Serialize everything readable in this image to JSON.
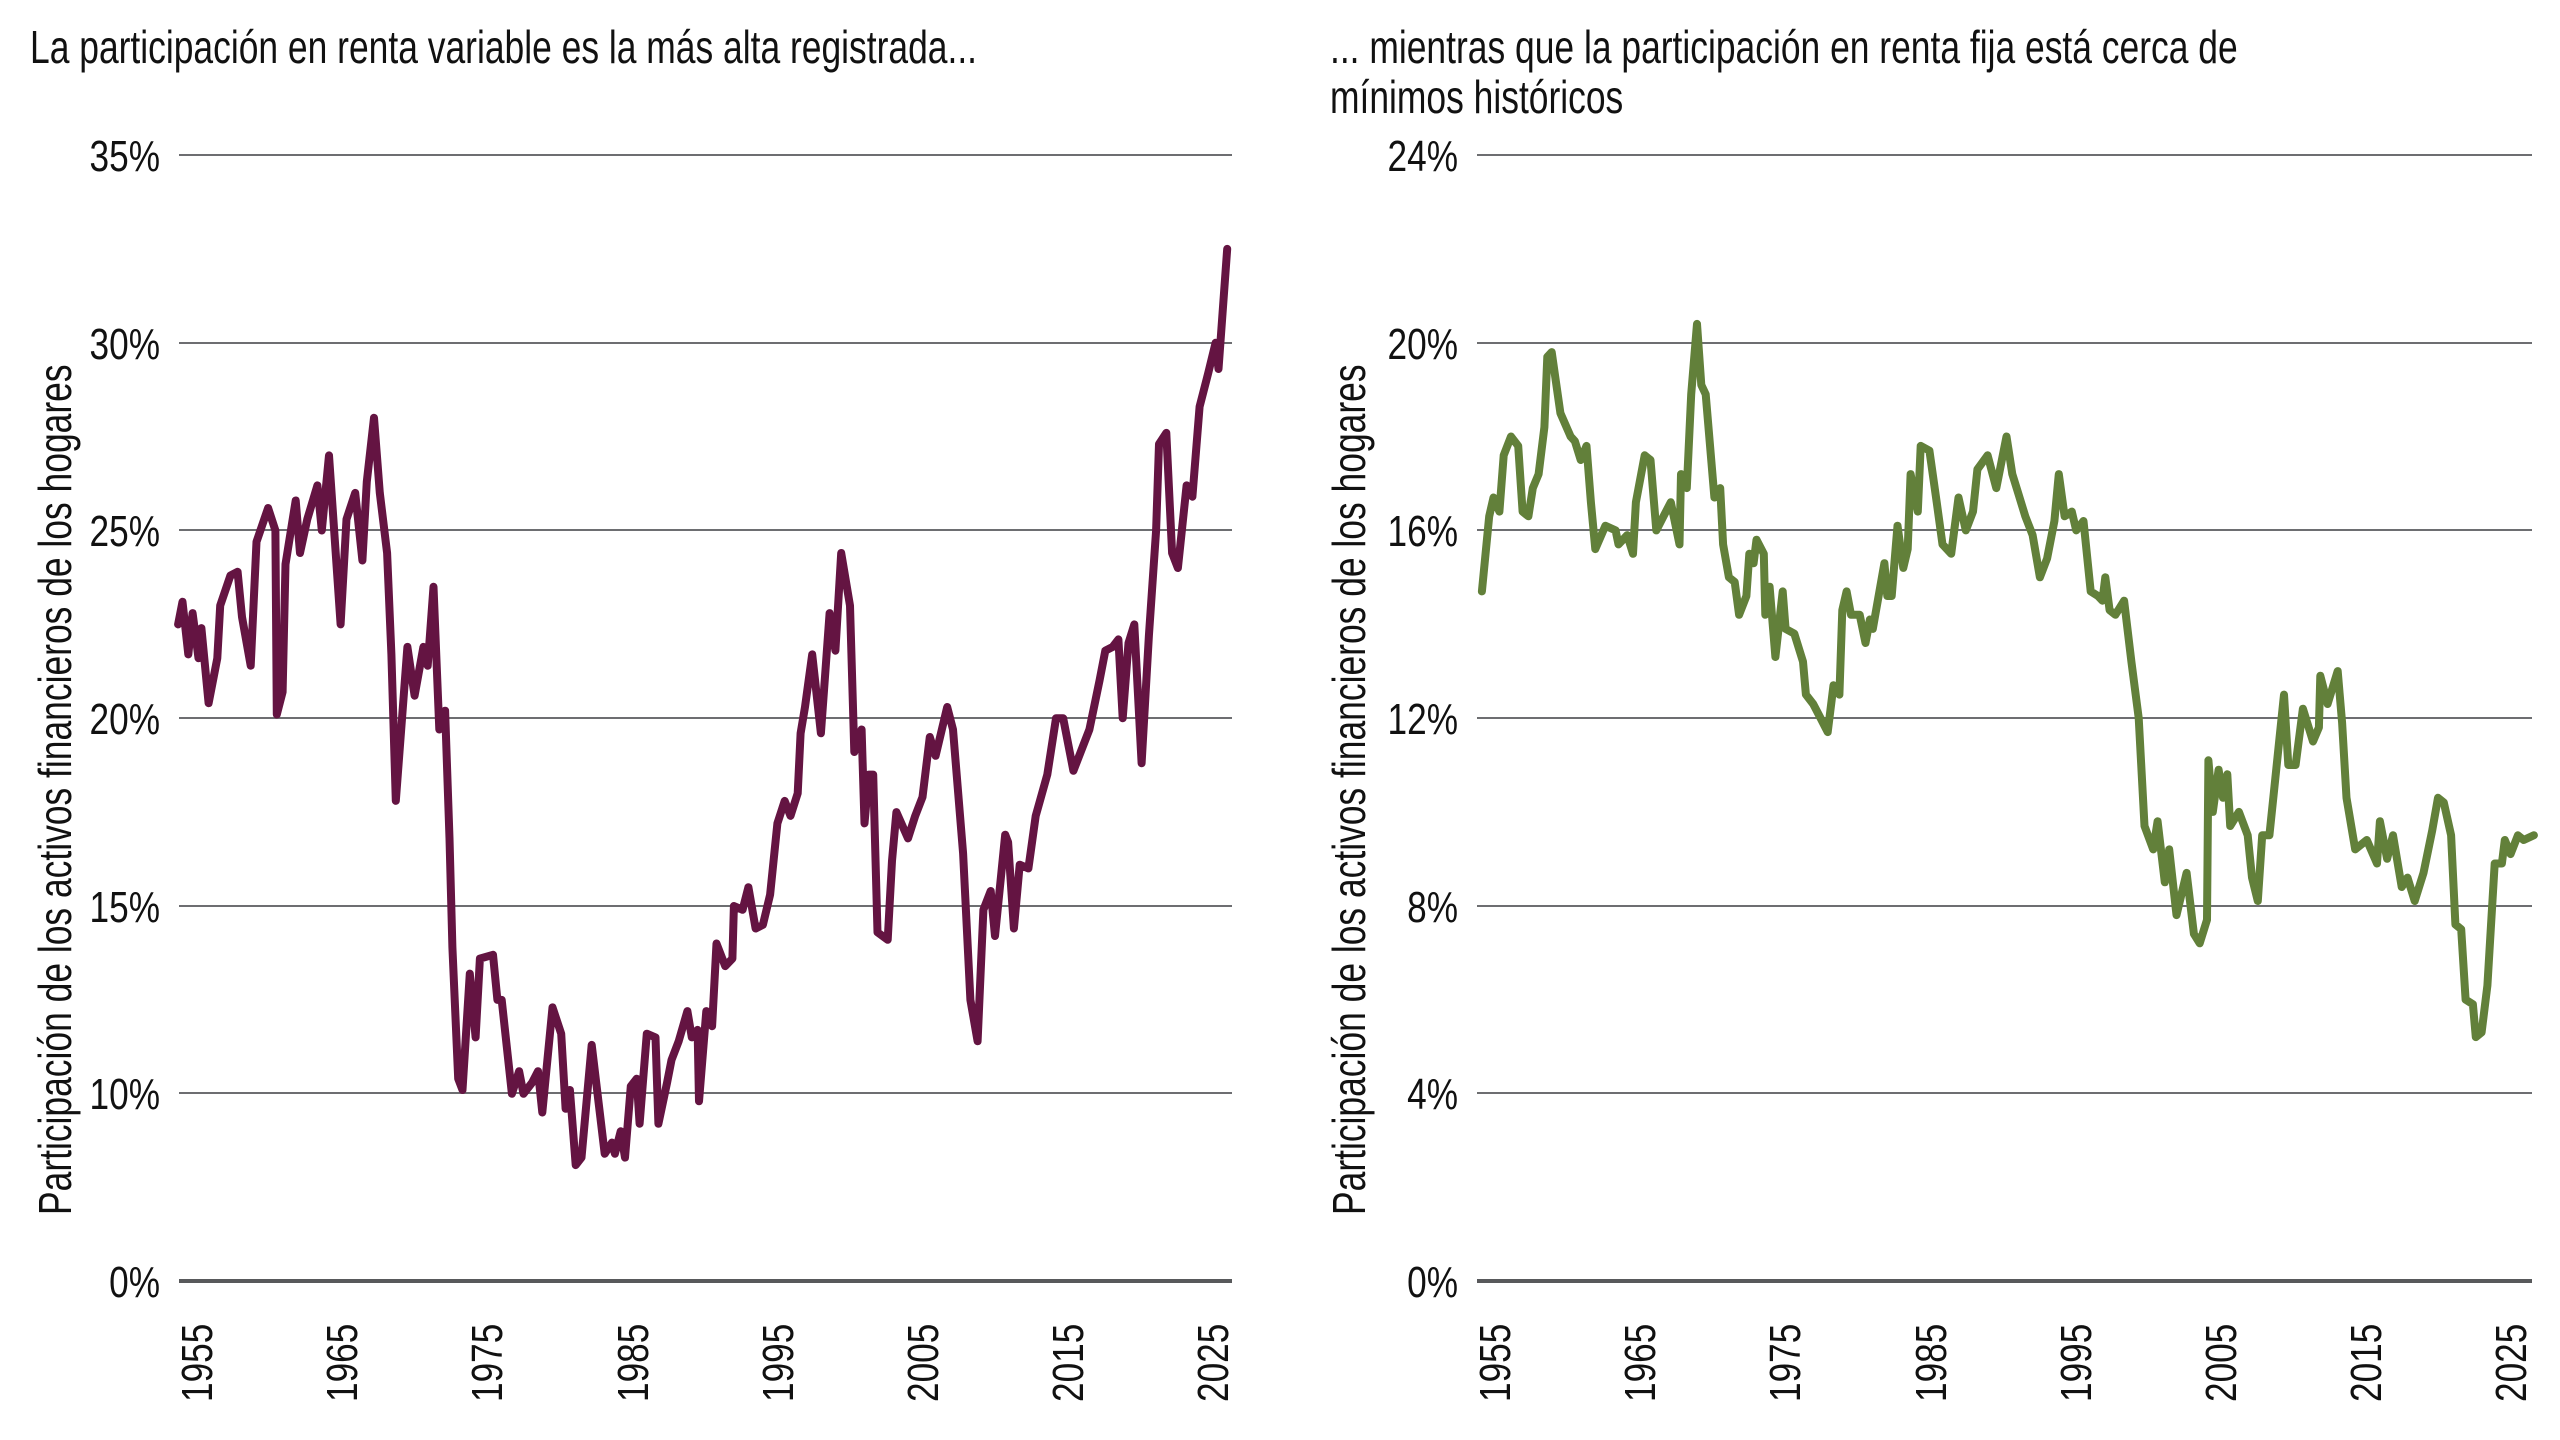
{
  "chart_data": [
    {
      "type": "line",
      "title": "La participación en renta variable es la más alta registrada...",
      "xlabel": "",
      "ylabel": "Participación de los activos financieros de los hogares",
      "y_ticks": [
        "35%",
        "30%",
        "25%",
        "20%",
        "15%",
        "10%",
        "0%"
      ],
      "y_tick_values": [
        35,
        30,
        25,
        20,
        15,
        10,
        5
      ],
      "y_axis_note": "Axis break: the '0%' label sits one step below 10% (at the 5% position)",
      "x_ticks": [
        "1955",
        "1965",
        "1975",
        "1985",
        "1995",
        "2005",
        "2015",
        "2025"
      ],
      "ylim": [
        5,
        35
      ],
      "xlim": [
        1953.8,
        2026.3
      ],
      "grid": true,
      "legend": null,
      "color": "#641442",
      "series": [
        {
          "name": "Renta variable",
          "x": [
            1953.7,
            1954.0,
            1954.4,
            1954.7,
            1955.1,
            1955.3,
            1955.8,
            1956.4,
            1956.6,
            1957.3,
            1957.8,
            1958.1,
            1958.7,
            1959.1,
            1959.9,
            1960.4,
            1960.5,
            1960.9,
            1961.1,
            1961.8,
            1962.1,
            1962.6,
            1963.3,
            1963.6,
            1964.1,
            1964.9,
            1965.3,
            1965.9,
            1966.4,
            1966.7,
            1967.2,
            1967.6,
            1968.1,
            1968.4,
            1968.7,
            1969.5,
            1970.0,
            1970.6,
            1970.9,
            1971.3,
            1971.7,
            1972.1,
            1972.4,
            1972.6,
            1973.0,
            1973.3,
            1973.8,
            1974.2,
            1974.5,
            1975.4,
            1975.7,
            1976.0,
            1976.7,
            1977.2,
            1977.5,
            1978.1,
            1978.5,
            1978.8,
            1979.5,
            1980.1,
            1980.4,
            1980.7,
            1981.1,
            1981.5,
            1982.2,
            1983.1,
            1983.6,
            1983.8,
            1984.2,
            1984.5,
            1984.9,
            1985.3,
            1985.5,
            1986.0,
            1986.6,
            1986.8,
            1987.4,
            1987.7,
            1988.2,
            1988.8,
            1989.1,
            1989.5,
            1989.6,
            1990.1,
            1990.5,
            1990.8,
            1991.4,
            1991.9,
            1992.0,
            1992.6,
            1993.0,
            1993.5,
            1994.0,
            1994.5,
            1995.0,
            1995.5,
            1995.9,
            1996.4,
            1996.6,
            1996.9,
            1997.4,
            1998.0,
            1998.6,
            1999.0,
            1999.4,
            2000.0,
            2000.3,
            2000.8,
            2001.0,
            2001.3,
            2001.6,
            2001.9,
            2002.6,
            2002.9,
            2003.2,
            2004.0,
            2004.5,
            2005.0,
            2005.5,
            2005.9,
            2006.7,
            2007.1,
            2007.8,
            2008.3,
            2008.8,
            2009.2,
            2009.7,
            2010.0,
            2010.7,
            2010.9,
            2011.3,
            2011.7,
            2012.3,
            2012.8,
            2013.6,
            2014.2,
            2014.7,
            2015.4,
            2016.5,
            2017.2,
            2017.6,
            2018.1,
            2018.5,
            2018.8,
            2019.2,
            2019.6,
            2020.1,
            2020.6,
            2021.1,
            2021.3,
            2021.8,
            2022.2,
            2022.6,
            2023.2,
            2023.6,
            2024.1,
            2024.7,
            2025.2,
            2025.4,
            2026.0
          ],
          "values": [
            22.5,
            23.1,
            21.7,
            22.8,
            21.6,
            22.4,
            20.4,
            21.6,
            23.0,
            23.8,
            23.9,
            22.7,
            21.4,
            24.7,
            25.6,
            25.0,
            20.1,
            20.7,
            24.1,
            25.8,
            24.4,
            25.3,
            26.2,
            25.0,
            27.0,
            22.5,
            25.3,
            26.0,
            24.2,
            26.3,
            28.0,
            26.0,
            24.4,
            21.7,
            17.8,
            21.9,
            20.6,
            21.9,
            21.4,
            23.5,
            19.7,
            20.2,
            16.8,
            13.9,
            10.4,
            10.1,
            13.2,
            11.5,
            13.6,
            13.7,
            12.5,
            12.5,
            10.0,
            10.6,
            10.0,
            10.3,
            10.6,
            9.5,
            12.3,
            11.6,
            9.6,
            10.1,
            8.1,
            8.3,
            11.3,
            8.4,
            8.7,
            8.4,
            9.0,
            8.3,
            10.2,
            10.4,
            9.2,
            11.6,
            11.5,
            9.2,
            10.3,
            10.9,
            11.4,
            12.2,
            11.5,
            11.7,
            9.8,
            12.2,
            11.8,
            14.0,
            13.4,
            13.6,
            15.0,
            14.9,
            15.5,
            14.4,
            14.5,
            15.3,
            17.2,
            17.8,
            17.4,
            18.0,
            19.6,
            20.3,
            21.7,
            19.6,
            22.8,
            21.8,
            24.4,
            23.0,
            19.1,
            19.7,
            17.2,
            18.5,
            18.5,
            14.3,
            14.1,
            16.2,
            17.5,
            16.8,
            17.4,
            17.9,
            19.5,
            19.0,
            20.3,
            19.7,
            16.4,
            12.5,
            11.4,
            14.9,
            15.4,
            14.2,
            16.9,
            16.7,
            14.4,
            16.1,
            16.0,
            17.4,
            18.5,
            20.0,
            20.0,
            18.6,
            19.7,
            21.0,
            21.8,
            21.9,
            22.1,
            20.0,
            22.0,
            22.5,
            18.8,
            22.2,
            25.0,
            27.3,
            27.6,
            24.4,
            24.0,
            26.2,
            25.9,
            28.3,
            29.2,
            30.0,
            29.3,
            32.5
          ]
        }
      ]
    },
    {
      "type": "line",
      "title": "... mientras que la participación en renta fija está cerca de mínimos históricos",
      "xlabel": "",
      "ylabel": "Participación de los activos financieros de los hogares",
      "y_ticks": [
        "24%",
        "20%",
        "16%",
        "12%",
        "8%",
        "4%",
        "0%"
      ],
      "y_tick_values": [
        24,
        20,
        16,
        12,
        8,
        4,
        0
      ],
      "x_ticks": [
        "1955",
        "1965",
        "1975",
        "1985",
        "1995",
        "2005",
        "2015",
        "2025"
      ],
      "ylim": [
        0,
        24
      ],
      "xlim": [
        1953.8,
        2026.5
      ],
      "grid": true,
      "legend": null,
      "color": "#62803a",
      "series": [
        {
          "name": "Renta fija",
          "x": [
            1954.1,
            1954.6,
            1954.9,
            1955.3,
            1955.6,
            1956.1,
            1956.6,
            1956.9,
            1957.3,
            1957.6,
            1958.0,
            1958.4,
            1958.6,
            1958.9,
            1959.5,
            1960.2,
            1960.5,
            1960.9,
            1961.3,
            1961.6,
            1961.9,
            1962.6,
            1963.3,
            1963.5,
            1964.1,
            1964.5,
            1964.7,
            1965.3,
            1965.7,
            1966.1,
            1966.6,
            1967.1,
            1967.7,
            1967.8,
            1968.2,
            1968.5,
            1968.9,
            1969.2,
            1969.5,
            1970.1,
            1970.5,
            1970.7,
            1971.1,
            1971.5,
            1971.8,
            1972.3,
            1972.5,
            1972.8,
            1973.0,
            1973.5,
            1973.6,
            1973.9,
            1974.3,
            1974.8,
            1975.0,
            1975.6,
            1976.2,
            1976.4,
            1976.9,
            1977.4,
            1977.9,
            1978.3,
            1978.7,
            1978.9,
            1979.2,
            1979.5,
            1980.1,
            1980.5,
            1980.8,
            1981.0,
            1981.8,
            1982.0,
            1982.3,
            1982.7,
            1983.1,
            1983.4,
            1983.6,
            1984.1,
            1984.3,
            1984.9,
            1985.4,
            1985.8,
            1986.4,
            1986.9,
            1987.4,
            1987.9,
            1988.2,
            1988.9,
            1989.5,
            1990.2,
            1990.6,
            1991.0,
            1991.5,
            1992.0,
            1992.5,
            1993.0,
            1993.5,
            1993.8,
            1994.2,
            1994.7,
            1995.0,
            1995.5,
            1996.0,
            1996.5,
            1996.8,
            1997.0,
            1997.3,
            1997.7,
            1998.3,
            1998.8,
            1999.3,
            1999.7,
            2000.3,
            2000.6,
            2001.1,
            2001.4,
            2001.9,
            2002.6,
            2003.1,
            2003.5,
            2004.0,
            2004.1,
            2004.4,
            2004.8,
            2005.1,
            2005.4,
            2005.6,
            2006.2,
            2006.8,
            2007.1,
            2007.5,
            2007.8,
            2008.3,
            2008.6,
            2009.3,
            2009.6,
            2010.1,
            2010.6,
            2011.3,
            2011.7,
            2011.8,
            2012.3,
            2013.0,
            2013.3,
            2013.6,
            2014.2,
            2015.0,
            2015.7,
            2015.9,
            2016.4,
            2016.8,
            2017.4,
            2017.8,
            2018.3,
            2018.9,
            2019.5,
            2019.9,
            2020.3,
            2020.8,
            2021.1,
            2021.5,
            2021.8,
            2022.3,
            2022.5,
            2022.9,
            2023.3,
            2023.8,
            2024.3,
            2024.5,
            2024.9,
            2025.4,
            2025.8,
            2026.5
          ],
          "values": [
            14.7,
            16.3,
            16.7,
            16.4,
            17.6,
            18.0,
            17.8,
            16.4,
            16.3,
            16.9,
            17.2,
            18.2,
            19.7,
            19.8,
            18.5,
            18.0,
            17.9,
            17.5,
            17.8,
            16.6,
            15.6,
            16.1,
            16.0,
            15.7,
            15.9,
            15.5,
            16.6,
            17.6,
            17.5,
            16.0,
            16.3,
            16.6,
            15.7,
            17.2,
            16.9,
            18.9,
            20.4,
            19.1,
            18.9,
            16.7,
            16.9,
            15.7,
            15.0,
            14.9,
            14.2,
            14.6,
            15.5,
            15.3,
            15.8,
            15.5,
            14.2,
            14.8,
            13.3,
            14.7,
            13.9,
            13.8,
            13.2,
            12.5,
            12.3,
            12.0,
            11.7,
            12.7,
            12.5,
            14.3,
            14.7,
            14.2,
            14.2,
            13.6,
            14.1,
            13.9,
            15.3,
            14.6,
            14.6,
            16.1,
            15.2,
            15.6,
            17.2,
            16.4,
            17.8,
            17.7,
            16.6,
            15.7,
            15.5,
            16.7,
            16.0,
            16.4,
            17.3,
            17.6,
            16.9,
            18.0,
            17.2,
            16.8,
            16.3,
            15.9,
            15.0,
            15.4,
            16.2,
            17.2,
            16.3,
            16.4,
            16.0,
            16.2,
            14.7,
            14.6,
            14.5,
            15.0,
            14.3,
            14.2,
            14.5,
            13.2,
            12.0,
            9.7,
            9.2,
            9.8,
            8.5,
            9.2,
            7.8,
            8.7,
            7.4,
            7.2,
            7.7,
            11.1,
            10.0,
            10.9,
            10.3,
            10.8,
            9.7,
            10.0,
            9.5,
            8.6,
            8.1,
            9.5,
            9.5,
            10.4,
            12.5,
            11.0,
            11.0,
            12.2,
            11.5,
            11.8,
            12.9,
            12.3,
            13.0,
            11.9,
            10.3,
            9.2,
            9.4,
            8.9,
            9.8,
            9.0,
            9.5,
            8.4,
            8.6,
            8.1,
            8.7,
            9.6,
            10.3,
            10.2,
            9.5,
            7.6,
            7.5,
            6.0,
            5.9,
            5.2,
            5.3,
            6.3,
            8.9,
            8.9,
            9.4,
            9.1,
            9.5,
            9.4,
            9.5
          ]
        }
      ]
    }
  ],
  "left": {
    "title": "La participación en renta variable es la más alta registrada...",
    "ylabel": "Participación de los activos financieros de los hogares",
    "y_ticks": [
      "35%",
      "30%",
      "25%",
      "20%",
      "15%",
      "10%",
      "0%"
    ],
    "x_ticks": [
      "1955",
      "1965",
      "1975",
      "1985",
      "1995",
      "2005",
      "2015",
      "2025"
    ]
  },
  "right": {
    "title_line1": "... mientras que la participación en renta fija está cerca de",
    "title_line2": "mínimos históricos",
    "ylabel": "Participación de los activos financieros de los hogares",
    "y_ticks": [
      "24%",
      "20%",
      "16%",
      "12%",
      "8%",
      "4%",
      "0%"
    ],
    "x_ticks": [
      "1955",
      "1965",
      "1975",
      "1985",
      "1995",
      "2005",
      "2015",
      "2025"
    ]
  },
  "colors": {
    "equity_line": "#641442",
    "fixed_income_line": "#62803a",
    "gridline": "#6d6e71",
    "baseline": "#58595b",
    "text": "#111111"
  }
}
